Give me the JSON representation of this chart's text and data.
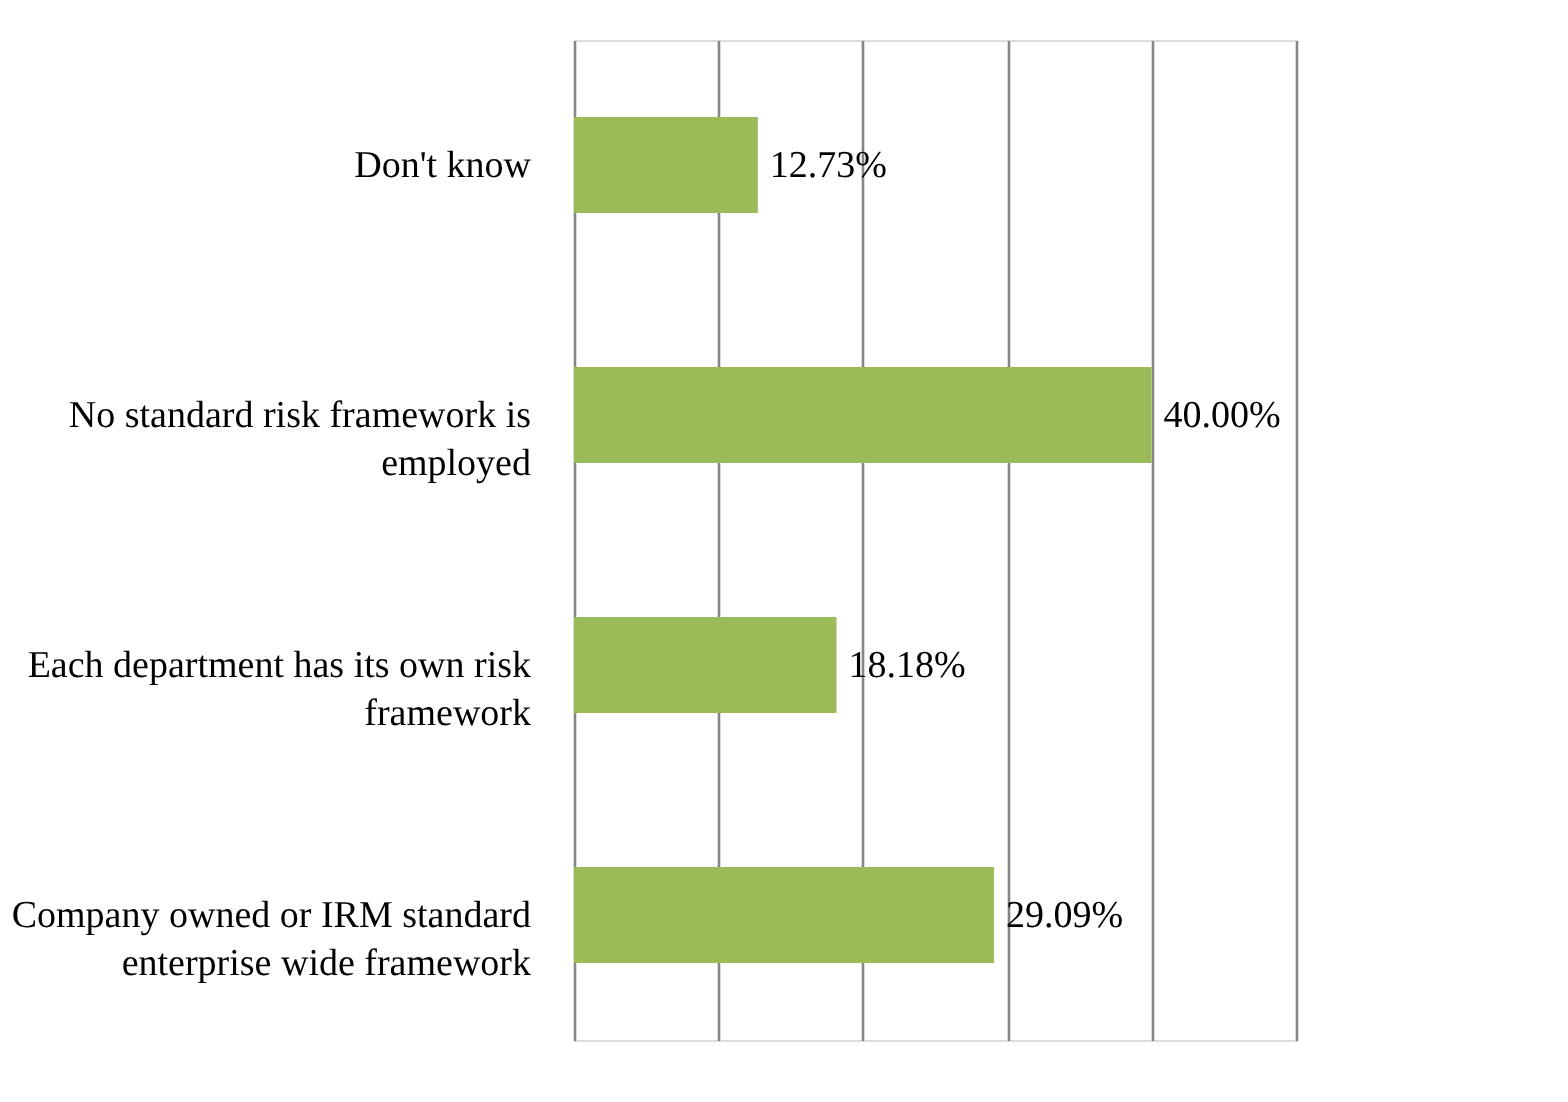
{
  "chart_data": {
    "type": "bar",
    "orientation": "horizontal",
    "categories": [
      "Don't know",
      "No standard risk framework is employed",
      "Each department has its own risk framework",
      "Company owned or IRM standard enterprise wide framework"
    ],
    "values": [
      12.73,
      40.0,
      18.18,
      29.09
    ],
    "value_labels": [
      "12.73%",
      "40.00%",
      "18.18%",
      "29.09%"
    ],
    "color": "#9bbb59",
    "xlim": [
      0,
      50
    ],
    "xticks": [
      {
        "value": 0,
        "label": null
      },
      {
        "value": 10,
        "label": null
      },
      {
        "value": 20,
        "label": null
      },
      {
        "value": 30,
        "label": null
      },
      {
        "value": 40,
        "label": null
      },
      {
        "value": 50,
        "label": null
      }
    ],
    "grid": "x",
    "tick_labels": "y"
  }
}
